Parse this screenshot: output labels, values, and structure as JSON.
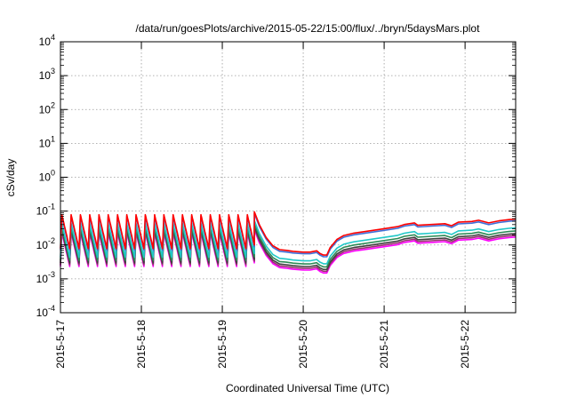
{
  "chart_data": {
    "type": "line",
    "title": "/data/run/goesPlots/archive/2015-05-22/15:00/flux/../bryn/5daysMars.plot",
    "xlabel": "Coordinated Universal Time (UTC)",
    "ylabel": "cSv/day",
    "y_scale": "log",
    "ylim": [
      0.0001,
      10000
    ],
    "xlim": [
      "2015-05-17T00:00",
      "2015-05-22T15:00"
    ],
    "grid": true,
    "legend": "none",
    "x_tick_labels": [
      "2015-5-17",
      "2015-5-18",
      "2015-5-19",
      "2015-5-20",
      "2015-5-21",
      "2015-5-22"
    ],
    "y_tick_labels": [
      {
        "base": "10",
        "exp": "-4"
      },
      {
        "base": "10",
        "exp": "-3"
      },
      {
        "base": "10",
        "exp": "-2"
      },
      {
        "base": "10",
        "exp": "-1"
      },
      {
        "base": "10",
        "exp": "0"
      },
      {
        "base": "10",
        "exp": "1"
      },
      {
        "base": "10",
        "exp": "2"
      },
      {
        "base": "10",
        "exp": "3"
      },
      {
        "base": "10",
        "exp": "4"
      }
    ],
    "series": [
      {
        "color": "#ff0000",
        "scale": 1.12
      },
      {
        "color": "#3f6fd8",
        "scale": 1.0
      },
      {
        "color": "#20c8c8",
        "scale": 0.62
      },
      {
        "color": "#2e8b57",
        "scale": 0.5
      },
      {
        "color": "#404040",
        "scale": 0.42
      },
      {
        "color": "#9a3070",
        "scale": 0.37
      },
      {
        "color": "#ff00ff",
        "scale": 0.33
      }
    ],
    "profile": {
      "description_of_values": "reference series flux (cSv/day) vs time; other series = reference x scale",
      "periodic_phase": {
        "start": "2015-05-17T00:00",
        "end": "2015-05-19T09:30",
        "period_hours": 2.75,
        "peak": 0.07,
        "trough": 0.007
      },
      "points": [
        [
          "2015-05-19T09:30",
          0.085
        ],
        [
          "2015-05-19T11:00",
          0.035
        ],
        [
          "2015-05-19T13:00",
          0.015
        ],
        [
          "2015-05-19T15:00",
          0.0085
        ],
        [
          "2015-05-19T17:00",
          0.0065
        ],
        [
          "2015-05-19T19:00",
          0.0062
        ],
        [
          "2015-05-19T21:00",
          0.0058
        ],
        [
          "2015-05-20T00:00",
          0.0055
        ],
        [
          "2015-05-20T02:00",
          0.0055
        ],
        [
          "2015-05-20T04:00",
          0.006
        ],
        [
          "2015-05-20T05:00",
          0.005
        ],
        [
          "2015-05-20T06:00",
          0.0045
        ],
        [
          "2015-05-20T07:00",
          0.0045
        ],
        [
          "2015-05-20T08:00",
          0.0075
        ],
        [
          "2015-05-20T10:00",
          0.013
        ],
        [
          "2015-05-20T12:00",
          0.017
        ],
        [
          "2015-05-20T15:00",
          0.02
        ],
        [
          "2015-05-20T18:00",
          0.022
        ],
        [
          "2015-05-21T00:00",
          0.027
        ],
        [
          "2015-05-21T04:00",
          0.031
        ],
        [
          "2015-05-21T06:00",
          0.036
        ],
        [
          "2015-05-21T09:00",
          0.04
        ],
        [
          "2015-05-21T10:00",
          0.034
        ],
        [
          "2015-05-21T14:00",
          0.036
        ],
        [
          "2015-05-21T18:00",
          0.038
        ],
        [
          "2015-05-21T20:00",
          0.033
        ],
        [
          "2015-05-21T22:00",
          0.042
        ],
        [
          "2015-05-22T02:00",
          0.044
        ],
        [
          "2015-05-22T04:00",
          0.048
        ],
        [
          "2015-05-22T07:00",
          0.04
        ],
        [
          "2015-05-22T10:00",
          0.046
        ],
        [
          "2015-05-22T13:00",
          0.05
        ],
        [
          "2015-05-22T15:00",
          0.052
        ]
      ]
    }
  }
}
